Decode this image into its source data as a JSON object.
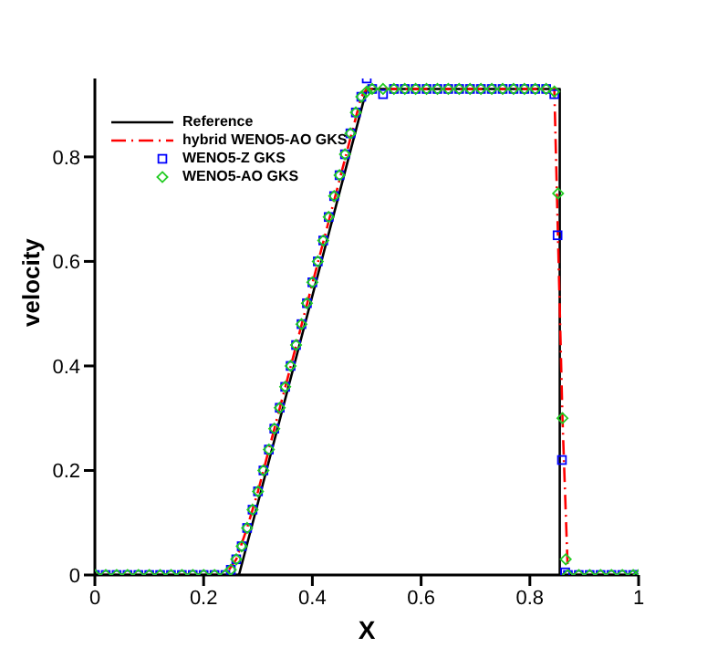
{
  "chart_data": {
    "type": "line",
    "xlabel": "X",
    "ylabel": "velocity",
    "xlim": [
      0,
      1
    ],
    "ylim": [
      0,
      0.95
    ],
    "xticks": [
      0,
      0.2,
      0.4,
      0.6,
      0.8,
      1
    ],
    "yticks": [
      0,
      0.2,
      0.4,
      0.6,
      0.8
    ],
    "grid": false,
    "legend": "top left",
    "series": [
      {
        "name": "Reference",
        "type": "line",
        "color": "#000000",
        "line_style": "solid",
        "marker": "none",
        "x": [
          0,
          0.265,
          0.5,
          0.855,
          0.855,
          1
        ],
        "values": [
          0,
          0,
          0.93,
          0.93,
          0,
          0
        ]
      },
      {
        "name": "hybrid WENO5-AO GKS",
        "type": "line",
        "color": "#ff0000",
        "line_style": "dashdot",
        "marker": "none",
        "x": [
          0,
          0.24,
          0.26,
          0.28,
          0.3,
          0.49,
          0.5,
          0.845,
          0.86,
          0.87,
          1
        ],
        "values": [
          0,
          0,
          0.03,
          0.09,
          0.16,
          0.915,
          0.93,
          0.93,
          0.3,
          0,
          0
        ]
      },
      {
        "name": "WENO5-Z GKS",
        "type": "scatter",
        "color": "#0000ff",
        "marker": "square",
        "x": [
          0,
          0.02,
          0.04,
          0.06,
          0.08,
          0.1,
          0.12,
          0.14,
          0.16,
          0.18,
          0.2,
          0.22,
          0.24,
          0.25,
          0.26,
          0.27,
          0.28,
          0.29,
          0.3,
          0.31,
          0.32,
          0.33,
          0.34,
          0.35,
          0.36,
          0.37,
          0.38,
          0.39,
          0.4,
          0.41,
          0.42,
          0.43,
          0.44,
          0.45,
          0.46,
          0.47,
          0.48,
          0.49,
          0.5,
          0.51,
          0.53,
          0.55,
          0.57,
          0.59,
          0.61,
          0.63,
          0.65,
          0.67,
          0.69,
          0.71,
          0.73,
          0.75,
          0.77,
          0.79,
          0.81,
          0.83,
          0.845,
          0.851,
          0.859,
          0.865,
          0.87,
          0.89,
          0.91,
          0.93,
          0.95,
          0.97,
          0.99,
          1
        ],
        "values": [
          0,
          0,
          0,
          0,
          0,
          0,
          0,
          0,
          0,
          0,
          0,
          0,
          0,
          0.01,
          0.03,
          0.055,
          0.09,
          0.125,
          0.16,
          0.2,
          0.24,
          0.28,
          0.32,
          0.36,
          0.4,
          0.44,
          0.48,
          0.52,
          0.56,
          0.6,
          0.64,
          0.685,
          0.725,
          0.765,
          0.805,
          0.845,
          0.885,
          0.915,
          0.95,
          0.93,
          0.92,
          0.93,
          0.93,
          0.93,
          0.93,
          0.93,
          0.93,
          0.93,
          0.93,
          0.93,
          0.93,
          0.93,
          0.93,
          0.93,
          0.93,
          0.93,
          0.92,
          0.65,
          0.22,
          0.005,
          0,
          0,
          0,
          0,
          0,
          0,
          0,
          0
        ]
      },
      {
        "name": "WENO5-AO GKS",
        "type": "scatter",
        "color": "#22cc22",
        "marker": "diamond",
        "x": [
          0,
          0.02,
          0.04,
          0.06,
          0.08,
          0.1,
          0.12,
          0.14,
          0.16,
          0.18,
          0.2,
          0.22,
          0.24,
          0.25,
          0.26,
          0.27,
          0.28,
          0.29,
          0.3,
          0.31,
          0.32,
          0.33,
          0.34,
          0.35,
          0.36,
          0.37,
          0.38,
          0.39,
          0.4,
          0.41,
          0.42,
          0.43,
          0.44,
          0.45,
          0.46,
          0.47,
          0.48,
          0.49,
          0.5,
          0.51,
          0.53,
          0.55,
          0.57,
          0.59,
          0.61,
          0.63,
          0.65,
          0.67,
          0.69,
          0.71,
          0.73,
          0.75,
          0.77,
          0.79,
          0.81,
          0.83,
          0.845,
          0.852,
          0.86,
          0.866,
          0.87,
          0.89,
          0.91,
          0.93,
          0.95,
          0.97,
          0.99,
          1
        ],
        "values": [
          0,
          0,
          0,
          0,
          0,
          0,
          0,
          0,
          0,
          0,
          0,
          0,
          0,
          0.01,
          0.03,
          0.055,
          0.09,
          0.125,
          0.16,
          0.2,
          0.24,
          0.28,
          0.32,
          0.36,
          0.4,
          0.44,
          0.48,
          0.52,
          0.56,
          0.6,
          0.64,
          0.685,
          0.725,
          0.765,
          0.805,
          0.845,
          0.885,
          0.915,
          0.925,
          0.93,
          0.93,
          0.93,
          0.93,
          0.93,
          0.93,
          0.93,
          0.93,
          0.93,
          0.93,
          0.93,
          0.93,
          0.93,
          0.93,
          0.93,
          0.93,
          0.93,
          0.925,
          0.73,
          0.3,
          0.03,
          0,
          0,
          0,
          0,
          0,
          0,
          0,
          0
        ]
      }
    ]
  }
}
